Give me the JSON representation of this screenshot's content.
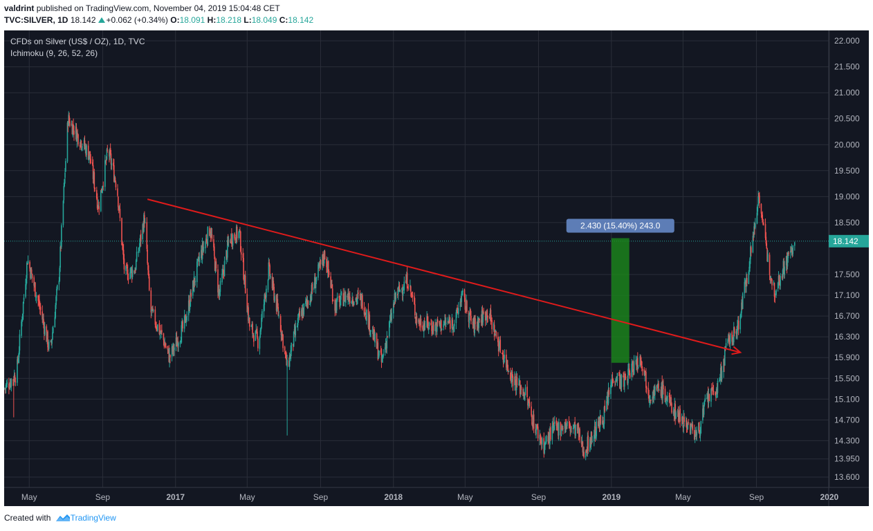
{
  "header": {
    "author": "valdrint",
    "published_text": "published on TradingView.com, November 04, 2019 15:04:48 CET",
    "symbol": "TVC:SILVER, 1D",
    "price": "18.142",
    "change": "+0.062 (+0.34%)",
    "open_label": "O:",
    "open": "18.091",
    "high_label": "H:",
    "high": "18.218",
    "low_label": "L:",
    "low": "18.049",
    "close_label": "C:",
    "close": "18.142"
  },
  "legend": {
    "title": "CFDs on Silver (US$ / OZ), 1D, TVC",
    "indicator": "Ichimoku (9, 26, 52, 26)"
  },
  "footer": {
    "created_with": "Created with",
    "brand": "TradingView"
  },
  "colors": {
    "background": "#131722",
    "grid": "#2a2e39",
    "up": "#26a69a",
    "down": "#ef5350",
    "trendline": "#e01b1b",
    "measure_box": "#1b8a1b",
    "measure_label_bg": "#5d7db6",
    "price_label_bg": "#26a69a",
    "axis_text": "#b2b5be"
  },
  "chart_data": {
    "type": "candlestick",
    "title": "CFDs on Silver (US$ / OZ), 1D, TVC",
    "interval": "1D",
    "x_range": [
      "2016-03-20",
      "2019-12-31"
    ],
    "ylim": [
      13.4,
      22.2
    ],
    "y_ticks": [
      "22.000",
      "21.500",
      "21.000",
      "20.500",
      "20.000",
      "19.500",
      "19.000",
      "18.500",
      "18.142",
      "17.500",
      "17.100",
      "16.700",
      "16.300",
      "15.900",
      "15.500",
      "15.100",
      "14.700",
      "14.300",
      "13.950",
      "13.600"
    ],
    "x_ticks": [
      {
        "label": "May",
        "date": "2016-05-01"
      },
      {
        "label": "Sep",
        "date": "2016-09-01"
      },
      {
        "label": "2017",
        "date": "2017-01-01"
      },
      {
        "label": "May",
        "date": "2017-05-01"
      },
      {
        "label": "Sep",
        "date": "2017-09-01"
      },
      {
        "label": "2018",
        "date": "2018-01-01"
      },
      {
        "label": "May",
        "date": "2018-05-01"
      },
      {
        "label": "Sep",
        "date": "2018-09-01"
      },
      {
        "label": "2019",
        "date": "2019-01-01"
      },
      {
        "label": "May",
        "date": "2019-05-01"
      },
      {
        "label": "Sep",
        "date": "2019-09-01"
      },
      {
        "label": "2020",
        "date": "2020-01-01"
      }
    ],
    "price_path": [
      {
        "date": "2016-03-20",
        "price": 15.3
      },
      {
        "date": "2016-04-10",
        "price": 15.6
      },
      {
        "date": "2016-04-28",
        "price": 17.8
      },
      {
        "date": "2016-05-20",
        "price": 16.8
      },
      {
        "date": "2016-06-05",
        "price": 16.0
      },
      {
        "date": "2016-06-20",
        "price": 17.5
      },
      {
        "date": "2016-07-05",
        "price": 20.5
      },
      {
        "date": "2016-07-20",
        "price": 20.2
      },
      {
        "date": "2016-08-10",
        "price": 19.8
      },
      {
        "date": "2016-08-25",
        "price": 18.8
      },
      {
        "date": "2016-09-10",
        "price": 19.9
      },
      {
        "date": "2016-09-25",
        "price": 19.2
      },
      {
        "date": "2016-10-08",
        "price": 17.5
      },
      {
        "date": "2016-10-25",
        "price": 17.6
      },
      {
        "date": "2016-11-10",
        "price": 18.6
      },
      {
        "date": "2016-11-20",
        "price": 16.8
      },
      {
        "date": "2016-12-10",
        "price": 16.3
      },
      {
        "date": "2016-12-22",
        "price": 15.9
      },
      {
        "date": "2017-01-15",
        "price": 16.5
      },
      {
        "date": "2017-02-10",
        "price": 17.8
      },
      {
        "date": "2017-02-28",
        "price": 18.4
      },
      {
        "date": "2017-03-15",
        "price": 17.1
      },
      {
        "date": "2017-04-01",
        "price": 18.2
      },
      {
        "date": "2017-04-18",
        "price": 18.3
      },
      {
        "date": "2017-05-05",
        "price": 16.5
      },
      {
        "date": "2017-05-20",
        "price": 16.2
      },
      {
        "date": "2017-06-06",
        "price": 17.6
      },
      {
        "date": "2017-06-25",
        "price": 16.6
      },
      {
        "date": "2017-07-07",
        "price": 15.7
      },
      {
        "date": "2017-07-25",
        "price": 16.6
      },
      {
        "date": "2017-08-15",
        "price": 17.1
      },
      {
        "date": "2017-09-08",
        "price": 17.9
      },
      {
        "date": "2017-09-25",
        "price": 16.9
      },
      {
        "date": "2017-10-15",
        "price": 17.1
      },
      {
        "date": "2017-11-10",
        "price": 17.0
      },
      {
        "date": "2017-12-12",
        "price": 15.8
      },
      {
        "date": "2018-01-05",
        "price": 17.1
      },
      {
        "date": "2018-01-25",
        "price": 17.4
      },
      {
        "date": "2018-02-10",
        "price": 16.6
      },
      {
        "date": "2018-03-10",
        "price": 16.5
      },
      {
        "date": "2018-04-15",
        "price": 16.6
      },
      {
        "date": "2018-04-25",
        "price": 17.1
      },
      {
        "date": "2018-05-15",
        "price": 16.5
      },
      {
        "date": "2018-06-08",
        "price": 16.8
      },
      {
        "date": "2018-06-25",
        "price": 16.2
      },
      {
        "date": "2018-07-20",
        "price": 15.5
      },
      {
        "date": "2018-08-10",
        "price": 15.2
      },
      {
        "date": "2018-08-25",
        "price": 14.6
      },
      {
        "date": "2018-09-10",
        "price": 14.2
      },
      {
        "date": "2018-09-25",
        "price": 14.5
      },
      {
        "date": "2018-10-15",
        "price": 14.6
      },
      {
        "date": "2018-11-05",
        "price": 14.5
      },
      {
        "date": "2018-11-15",
        "price": 14.1
      },
      {
        "date": "2018-12-01",
        "price": 14.4
      },
      {
        "date": "2018-12-20",
        "price": 14.8
      },
      {
        "date": "2019-01-05",
        "price": 15.6
      },
      {
        "date": "2019-01-20",
        "price": 15.4
      },
      {
        "date": "2019-02-10",
        "price": 15.8
      },
      {
        "date": "2019-02-20",
        "price": 15.9
      },
      {
        "date": "2019-03-05",
        "price": 15.2
      },
      {
        "date": "2019-03-25",
        "price": 15.3
      },
      {
        "date": "2019-04-15",
        "price": 14.9
      },
      {
        "date": "2019-05-10",
        "price": 14.6
      },
      {
        "date": "2019-05-25",
        "price": 14.4
      },
      {
        "date": "2019-06-10",
        "price": 15.1
      },
      {
        "date": "2019-06-28",
        "price": 15.3
      },
      {
        "date": "2019-07-15",
        "price": 16.2
      },
      {
        "date": "2019-07-30",
        "price": 16.4
      },
      {
        "date": "2019-08-12",
        "price": 17.2
      },
      {
        "date": "2019-08-30",
        "price": 18.5
      },
      {
        "date": "2019-09-05",
        "price": 19.1
      },
      {
        "date": "2019-09-18",
        "price": 17.9
      },
      {
        "date": "2019-10-01",
        "price": 17.2
      },
      {
        "date": "2019-10-15",
        "price": 17.6
      },
      {
        "date": "2019-10-31",
        "price": 18.0
      },
      {
        "date": "2019-11-04",
        "price": 18.14
      }
    ],
    "spike_lows": [
      {
        "date": "2017-07-07",
        "low": 14.4
      },
      {
        "date": "2016-04-05",
        "low": 14.75
      }
    ],
    "trendline": {
      "start": {
        "date": "2016-11-15",
        "price": 18.95
      },
      "end": {
        "date": "2019-08-05",
        "price": 16.0
      },
      "arrow": true
    },
    "measure": {
      "start_date": "2019-01-01",
      "end_date": "2019-01-31",
      "from_price": 15.8,
      "to_price": 18.2,
      "label": "2.430 (15.40%) 243.0"
    },
    "last_price": {
      "value": 18.142,
      "label": "18.142"
    }
  }
}
